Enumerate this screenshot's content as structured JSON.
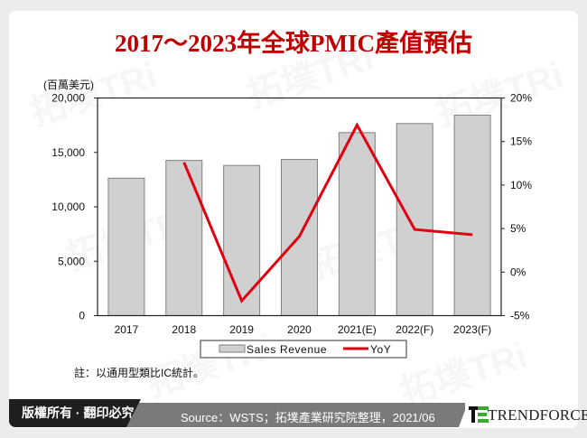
{
  "title": "2017～2023年全球PMIC產值預估",
  "chart_data": {
    "type": "bar+line",
    "title": "2017～2023年全球PMIC產值預估",
    "categories": [
      "2017",
      "2018",
      "2019",
      "2020",
      "2021(E)",
      "2022(F)",
      "2023(F)"
    ],
    "series": [
      {
        "name": "Sales Revenue",
        "type": "bar",
        "axis": "left",
        "color": "#d0d0d0",
        "values": [
          12630,
          14260,
          13800,
          14350,
          16820,
          17650,
          18420
        ]
      },
      {
        "name": "YoY",
        "type": "line",
        "axis": "right",
        "color": "#e00010",
        "values": [
          null,
          12.6,
          -3.3,
          4.1,
          16.9,
          4.9,
          4.3
        ]
      }
    ],
    "ylabel_left": "(百萬美元)",
    "left_axis": {
      "min": 0,
      "max": 20000,
      "ticks": [
        0,
        5000,
        10000,
        15000,
        20000
      ],
      "tick_labels": [
        "0",
        "5,000",
        "10,000",
        "15,000",
        "20,000"
      ]
    },
    "right_axis": {
      "min": -5,
      "max": 20,
      "ticks": [
        -5,
        0,
        5,
        10,
        15,
        20
      ],
      "tick_labels": [
        "-5%",
        "0%",
        "5%",
        "10%",
        "15%",
        "20%"
      ]
    },
    "legend": {
      "position": "bottom",
      "entries": [
        "Sales Revenue",
        "YoY"
      ]
    },
    "grid": false
  },
  "note": "註：以通用型類比IC統計。",
  "footer": {
    "copyright": "版權所有 · 翻印必究",
    "source": "Source：WSTS；拓墣產業研究院整理，2021/06",
    "brand": "TRENDFORCE"
  },
  "watermark": "拓墣TRi"
}
